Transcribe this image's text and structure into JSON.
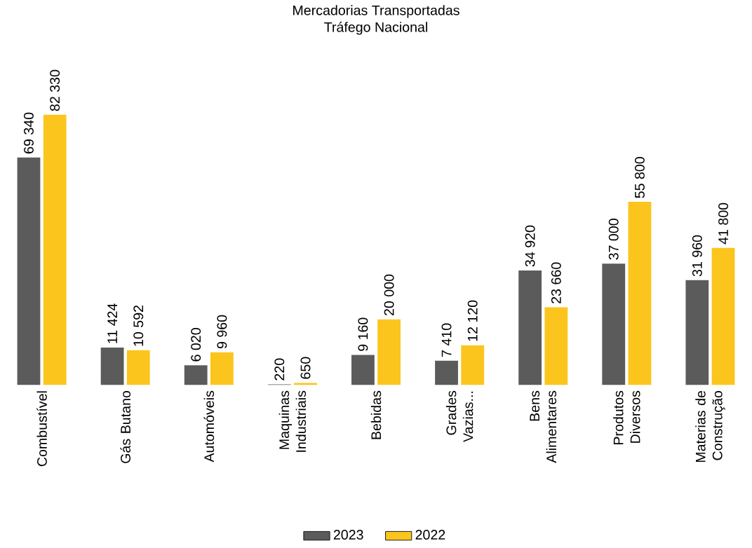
{
  "chart_data": {
    "type": "bar",
    "title": "Mercadorias Transportadas",
    "subtitle": "Tráfego Nacional",
    "categories": [
      "Combustível",
      "Gás Butano",
      "Automóveis",
      "Maquinas Industriais",
      "Bebidas",
      "Grades Vazias...",
      "Bens Alimentares",
      "Produtos Diversos",
      "Materias de Construção"
    ],
    "series": [
      {
        "name": "2023",
        "color": "#5b5b5b",
        "values": [
          69340,
          11424,
          6020,
          220,
          9160,
          7410,
          34920,
          37000,
          31960
        ],
        "value_labels": [
          "69 340",
          "11 424",
          "6 020",
          "220",
          "9 160",
          "7 410",
          "34 920",
          "37 000",
          "31 960"
        ]
      },
      {
        "name": "2022",
        "color": "#fbc51e",
        "values": [
          82330,
          10592,
          9960,
          650,
          20000,
          12120,
          23660,
          55800,
          41800
        ],
        "value_labels": [
          "82 330",
          "10 592",
          "9 960",
          "650",
          "20 000",
          "12 120",
          "23 660",
          "55 800",
          "41 800"
        ]
      }
    ],
    "legend": "bottom"
  }
}
